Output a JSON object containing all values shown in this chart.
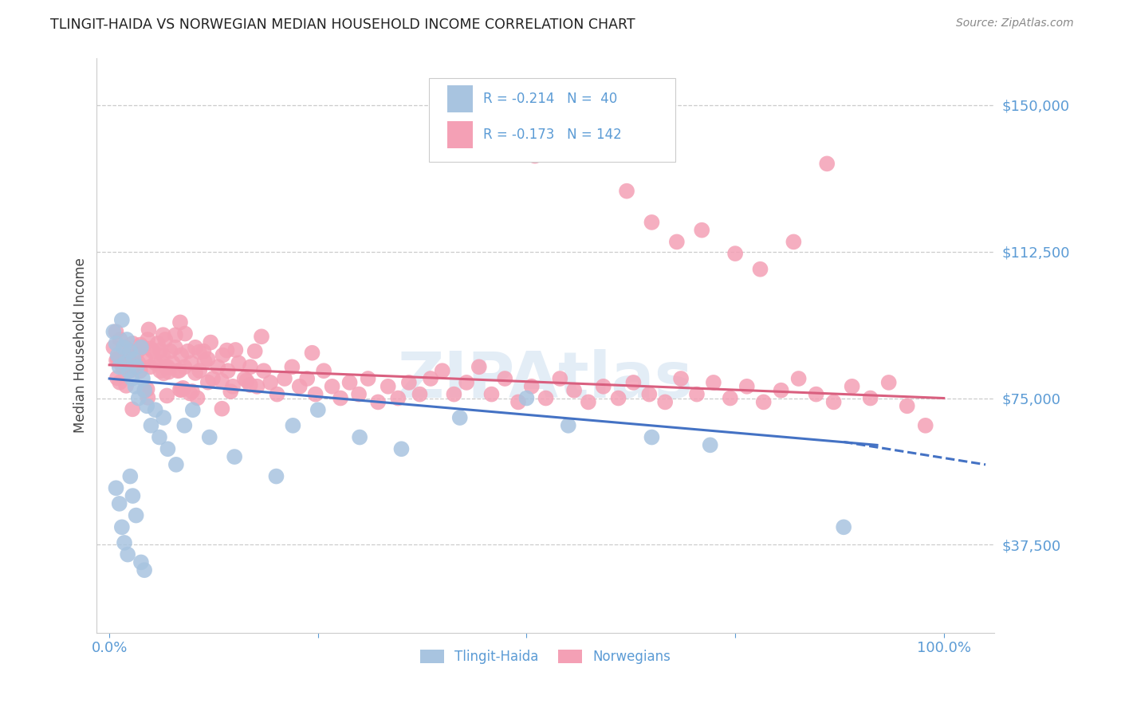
{
  "title": "TLINGIT-HAIDA VS NORWEGIAN MEDIAN HOUSEHOLD INCOME CORRELATION CHART",
  "source": "Source: ZipAtlas.com",
  "ylabel": "Median Household Income",
  "color_tlingit": "#a8c4e0",
  "color_norwegian": "#f4a0b5",
  "color_tlingit_line": "#4472c4",
  "color_norwegian_line": "#d95f7f",
  "color_axis_text": "#5b9bd5",
  "color_grid": "#cccccc",
  "ymin": 15000,
  "ymax": 162000,
  "yticks": [
    37500,
    75000,
    112500,
    150000
  ],
  "ytick_labels": [
    "$37,500",
    "$75,000",
    "$112,500",
    "$150,000"
  ],
  "watermark_text": "ZIPAtlas",
  "legend_line1": "R = -0.214   N =  40",
  "legend_line2": "R = -0.173   N = 142",
  "tlingit_x": [
    0.005,
    0.008,
    0.01,
    0.012,
    0.015,
    0.017,
    0.019,
    0.021,
    0.023,
    0.025,
    0.027,
    0.029,
    0.031,
    0.033,
    0.035,
    0.038,
    0.04,
    0.042,
    0.045,
    0.05,
    0.055,
    0.06,
    0.065,
    0.07,
    0.08,
    0.09,
    0.1,
    0.12,
    0.15,
    0.2,
    0.22,
    0.25,
    0.3,
    0.35,
    0.42,
    0.5,
    0.55,
    0.65,
    0.72,
    0.88
  ],
  "tlingit_y": [
    92000,
    89000,
    86000,
    83000,
    95000,
    88000,
    84000,
    90000,
    82000,
    87000,
    80000,
    85000,
    78000,
    83000,
    75000,
    88000,
    80000,
    77000,
    73000,
    68000,
    72000,
    65000,
    70000,
    62000,
    58000,
    68000,
    72000,
    65000,
    60000,
    55000,
    68000,
    72000,
    65000,
    62000,
    70000,
    75000,
    68000,
    65000,
    63000,
    42000
  ],
  "tlingit_low_x": [
    0.008,
    0.012,
    0.015,
    0.018,
    0.022,
    0.025,
    0.028,
    0.032,
    0.038,
    0.042
  ],
  "tlingit_low_y": [
    52000,
    48000,
    42000,
    38000,
    35000,
    55000,
    50000,
    45000,
    33000,
    31000
  ],
  "norwegian_x": [
    0.005,
    0.008,
    0.01,
    0.013,
    0.016,
    0.019,
    0.022,
    0.025,
    0.028,
    0.031,
    0.034,
    0.037,
    0.04,
    0.043,
    0.046,
    0.049,
    0.052,
    0.055,
    0.058,
    0.061,
    0.064,
    0.067,
    0.07,
    0.073,
    0.076,
    0.079,
    0.082,
    0.086,
    0.09,
    0.094,
    0.098,
    0.103,
    0.108,
    0.113,
    0.118,
    0.124,
    0.13,
    0.136,
    0.142,
    0.148,
    0.155,
    0.162,
    0.169,
    0.177,
    0.185,
    0.193,
    0.201,
    0.21,
    0.219,
    0.228,
    0.237,
    0.247,
    0.257,
    0.267,
    0.277,
    0.288,
    0.299,
    0.31,
    0.322,
    0.334,
    0.346,
    0.359,
    0.372,
    0.385,
    0.399,
    0.413,
    0.428,
    0.443,
    0.458,
    0.474,
    0.49,
    0.506,
    0.523,
    0.54,
    0.557,
    0.574,
    0.592,
    0.61,
    0.628,
    0.647,
    0.666,
    0.685,
    0.704,
    0.724,
    0.744,
    0.764,
    0.784,
    0.805,
    0.826,
    0.847,
    0.868,
    0.89,
    0.912,
    0.934,
    0.956,
    0.978
  ],
  "norwegian_y": [
    88000,
    92000,
    85000,
    90000,
    83000,
    88000,
    86000,
    82000,
    89000,
    84000,
    87000,
    82000,
    88000,
    85000,
    90000,
    83000,
    87000,
    84000,
    89000,
    82000,
    86000,
    90000,
    83000,
    87000,
    84000,
    88000,
    82000,
    86000,
    83000,
    87000,
    84000,
    88000,
    82000,
    87000,
    85000,
    80000,
    83000,
    86000,
    82000,
    78000,
    84000,
    80000,
    83000,
    78000,
    82000,
    79000,
    76000,
    80000,
    83000,
    78000,
    80000,
    76000,
    82000,
    78000,
    75000,
    79000,
    76000,
    80000,
    74000,
    78000,
    75000,
    79000,
    76000,
    80000,
    82000,
    76000,
    79000,
    83000,
    76000,
    80000,
    74000,
    78000,
    75000,
    80000,
    77000,
    74000,
    78000,
    75000,
    79000,
    76000,
    74000,
    80000,
    76000,
    79000,
    75000,
    78000,
    74000,
    77000,
    80000,
    76000,
    74000,
    78000,
    75000,
    79000,
    73000,
    68000
  ],
  "norwegian_high_x": [
    0.51,
    0.62,
    0.65,
    0.68,
    0.71,
    0.75,
    0.78,
    0.82,
    0.86
  ],
  "norwegian_high_y": [
    137000,
    128000,
    120000,
    115000,
    118000,
    112000,
    108000,
    115000,
    135000
  ]
}
